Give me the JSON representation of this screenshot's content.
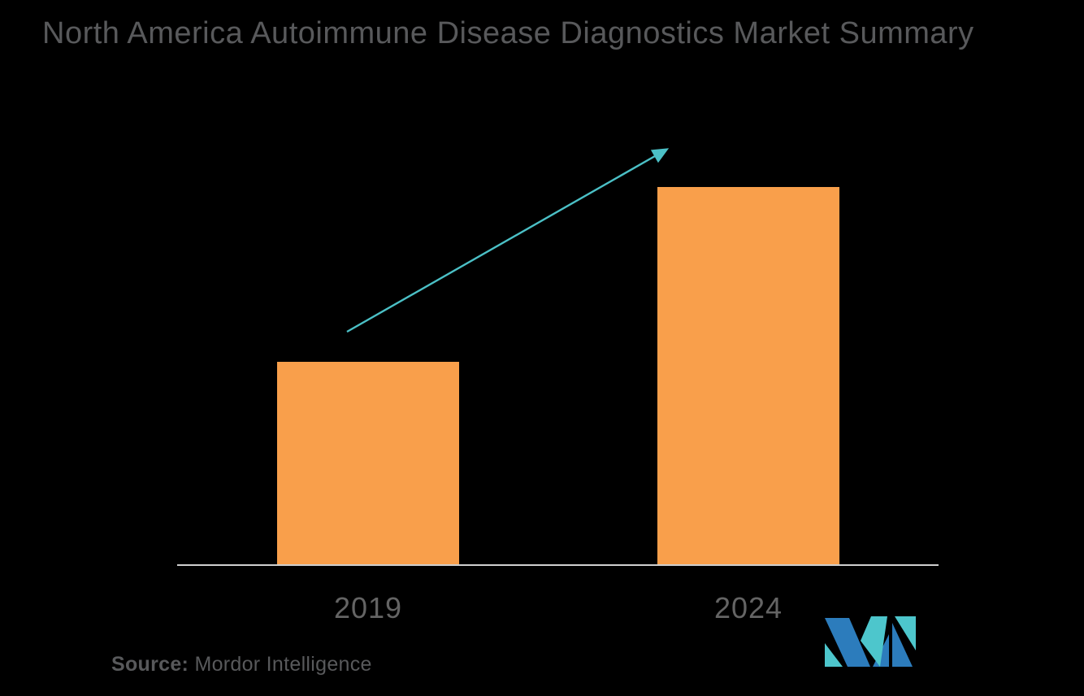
{
  "title": "North America Autoimmune Disease Diagnostics Market Summary",
  "source": {
    "label": "Source:",
    "name": "Mordor Intelligence"
  },
  "colors": {
    "background": "#000000",
    "bar_orange": "#F99F4B",
    "arrow_teal": "#4BC0C6",
    "axis_gray": "#CFCFCF",
    "title_gray": "#58595B",
    "label_gray": "#646464",
    "logo_blue": "#2C7CBC",
    "logo_teal": "#4DC6CC"
  },
  "chart_data": {
    "type": "bar",
    "title": "North America Autoimmune Disease Diagnostics Market Summary",
    "categories": [
      "2019",
      "2024"
    ],
    "values": [
      53.7,
      100
    ],
    "xlabel": "",
    "ylabel": "",
    "ylim": [
      0,
      116
    ],
    "grid": false,
    "legend": false,
    "value_scale": "relative index (no numeric axis shown in figure)",
    "annotations": [
      "upward growth trend arrow from 2019 bar toward 2024 bar"
    ]
  },
  "logo": {
    "name": "mordor-intelligence-logo"
  }
}
